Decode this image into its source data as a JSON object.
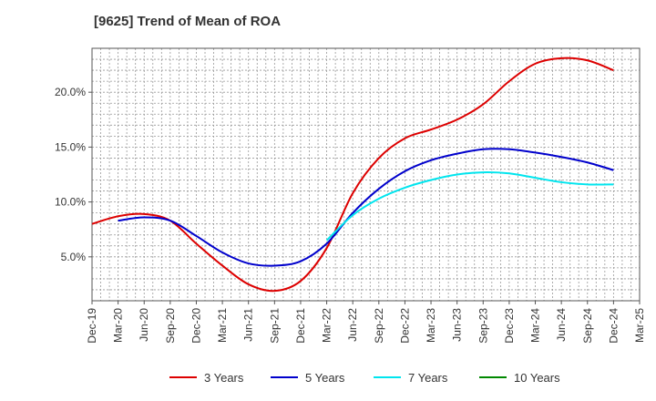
{
  "chart_data": {
    "type": "line",
    "title": "[9625]  Trend of Mean of ROA",
    "xlabel": "",
    "ylabel": "",
    "y_unit": "%",
    "ylim": [
      1.0,
      24.0
    ],
    "yticks": [
      5.0,
      10.0,
      15.0,
      20.0
    ],
    "ytick_labels": [
      "5.0%",
      "10.0%",
      "15.0%",
      "20.0%"
    ],
    "categories": [
      "Dec-19",
      "Mar-20",
      "Jun-20",
      "Sep-20",
      "Dec-20",
      "Mar-21",
      "Jun-21",
      "Sep-21",
      "Dec-21",
      "Mar-22",
      "Jun-22",
      "Sep-22",
      "Dec-22",
      "Mar-23",
      "Jun-23",
      "Sep-23",
      "Dec-23",
      "Mar-24",
      "Jun-24",
      "Sep-24",
      "Dec-24",
      "Mar-25"
    ],
    "grid": true,
    "legend_position": "bottom",
    "series": [
      {
        "name": "3 Years",
        "color": "#dd0000",
        "values": [
          8.0,
          8.7,
          8.9,
          8.3,
          6.2,
          4.2,
          2.5,
          1.9,
          2.8,
          5.8,
          10.8,
          14.0,
          15.8,
          16.6,
          17.5,
          18.9,
          21.0,
          22.6,
          23.1,
          22.9,
          22.0,
          null
        ]
      },
      {
        "name": "5 Years",
        "color": "#0000cc",
        "values": [
          null,
          8.3,
          8.6,
          8.3,
          6.9,
          5.4,
          4.4,
          4.2,
          4.6,
          6.2,
          9.0,
          11.2,
          12.8,
          13.8,
          14.4,
          14.8,
          14.8,
          14.5,
          14.1,
          13.6,
          12.9,
          null
        ]
      },
      {
        "name": "7 Years",
        "color": "#00e5ee",
        "values": [
          null,
          null,
          null,
          null,
          null,
          null,
          null,
          null,
          null,
          6.5,
          8.8,
          10.3,
          11.3,
          12.0,
          12.5,
          12.7,
          12.6,
          12.2,
          11.8,
          11.6,
          11.6,
          null
        ]
      },
      {
        "name": "10 Years",
        "color": "#008800",
        "values": [
          null,
          null,
          null,
          null,
          null,
          null,
          null,
          null,
          null,
          null,
          null,
          null,
          null,
          null,
          null,
          null,
          null,
          null,
          null,
          null,
          null,
          null
        ]
      }
    ]
  }
}
